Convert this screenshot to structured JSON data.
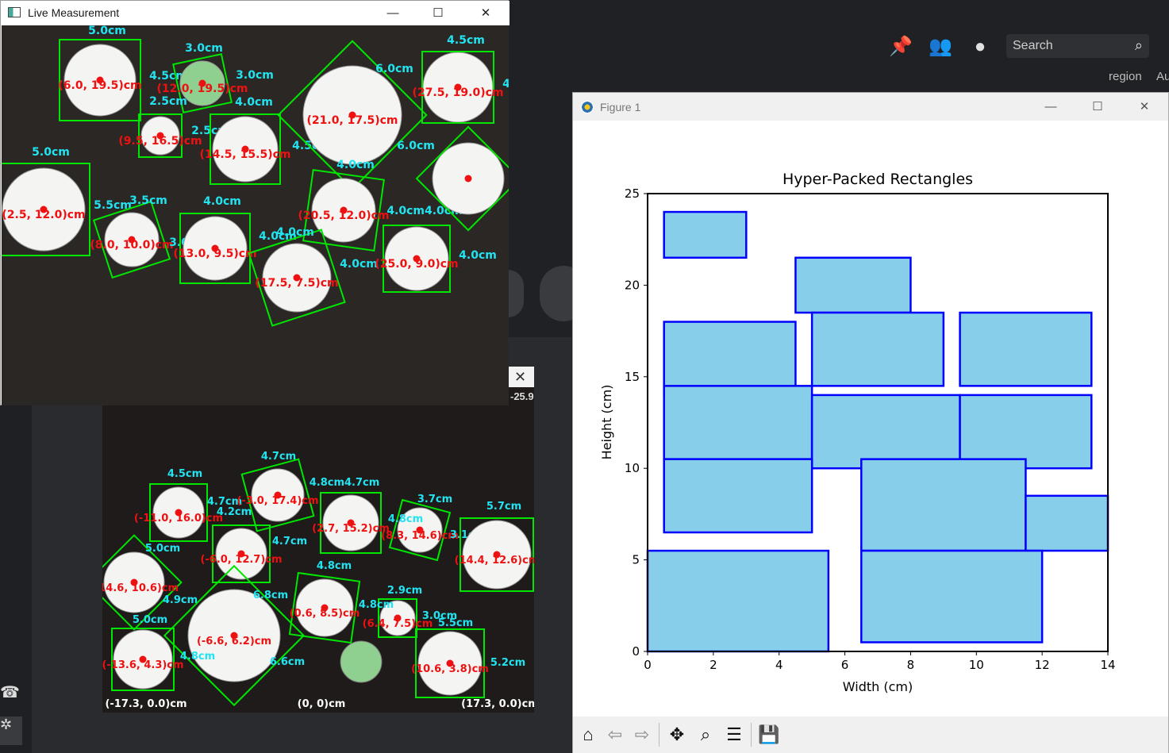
{
  "background_app": {
    "search_placeholder": "Search",
    "region_label": "region",
    "au_label": "Au"
  },
  "live_window": {
    "title": "Live Measurement",
    "controls": {
      "minimize": "—",
      "maximize": "☐",
      "close": "✕"
    },
    "measurements": [
      {
        "coord": "(6.0, 19.5)cm",
        "size_labels": [
          "5.0cm",
          "4.5cm"
        ]
      },
      {
        "coord": "(12.0, 19.5)cm",
        "size_labels": [
          "3.0cm",
          "3.0cm",
          "2.5cm"
        ]
      },
      {
        "coord": "(9.5, 16.5)cm",
        "size_labels": [
          "2.5cm"
        ]
      },
      {
        "coord": "(14.5, 15.5)cm",
        "size_labels": [
          "4.0cm",
          "4.5cm"
        ]
      },
      {
        "coord": "(21.0, 17.5)cm",
        "size_labels": [
          "6.0cm",
          "6.0cm"
        ]
      },
      {
        "coord": "(27.5, 19.0)cm",
        "size_labels": [
          "4.5cm",
          "4"
        ]
      },
      {
        "coord": "(2.5, 12.0)cm",
        "size_labels": [
          "5.0cm",
          "5.5cm"
        ]
      },
      {
        "coord": "(8.0, 10.0)cm",
        "size_labels": [
          "3.5cm",
          "3.0cm"
        ]
      },
      {
        "coord": "(13.0, 9.5)cm",
        "size_labels": [
          "4.0cm",
          "4.0cm"
        ]
      },
      {
        "coord": "(20.5, 12.0)cm",
        "size_labels": [
          "4.0cm",
          "4.0cm4.0cm"
        ]
      },
      {
        "coord": "(17.5, 7.5)cm",
        "size_labels": [
          "4.0cm",
          "4.0cm"
        ]
      },
      {
        "coord": "(25.0, 9.0)cm",
        "size_labels": [
          "4.0cm"
        ]
      }
    ]
  },
  "cam2_window": {
    "close": "✕",
    "top_right_label": "-25.9",
    "measurements": [
      {
        "coord": "(-11.0, 16.0)cm",
        "size_labels": [
          "4.5cm",
          "4.7cm"
        ]
      },
      {
        "coord": "(-3.0, 17.4)cm",
        "size_labels": [
          "4.7cm"
        ]
      },
      {
        "coord": "(2.7, 15.2)cm",
        "size_labels": [
          "4.8cm4.7cm"
        ]
      },
      {
        "coord": "(8.3, 14.6)cm",
        "size_labels": [
          "3.7cm",
          "4.8cm",
          "3.1cm"
        ]
      },
      {
        "coord": "(14.4, 12.6)cm",
        "size_labels": [
          "5.7cm"
        ]
      },
      {
        "coord": "(-6.0, 12.7)cm",
        "size_labels": [
          "4.2cm",
          "4.7cm"
        ]
      },
      {
        "coord": "(-14.6, 10.6)cm",
        "size_labels": [
          "5.0cm",
          "4.9cm"
        ]
      },
      {
        "coord": "(0.6, 8.5)cm",
        "size_labels": [
          "4.8cm"
        ]
      },
      {
        "coord": "(-6.6, 6.2)cm",
        "size_labels": [
          "6.8cm",
          "6.6cm"
        ]
      },
      {
        "coord": "(6.4, 7.5)cm",
        "size_labels": [
          "2.9cm",
          "4.8cm"
        ]
      },
      {
        "coord": "(-13.6, 4.3)cm",
        "size_labels": [
          "5.0cm",
          "4.8cm"
        ]
      },
      {
        "coord": "(10.6, 3.8)cm",
        "size_labels": [
          "3.0cm",
          "5.5cm",
          "5.2cm"
        ]
      }
    ],
    "axis_labels": [
      "(-17.3, 0.0)cm",
      "(0, 0)cm",
      "(17.3, 0.0)cm"
    ]
  },
  "figure_window": {
    "title": "Figure 1",
    "controls": {
      "minimize": "—",
      "maximize": "☐",
      "close": "✕"
    },
    "toolbar": [
      "home-icon",
      "back-icon",
      "forward-icon",
      "pan-icon",
      "zoom-icon",
      "configure-icon",
      "save-icon"
    ]
  },
  "chart_data": {
    "type": "bar",
    "title": "Hyper-Packed Rectangles",
    "xlabel": "Width (cm)",
    "ylabel": "Height (cm)",
    "xlim": [
      0,
      14
    ],
    "ylim": [
      0,
      25
    ],
    "xticks": [
      0,
      2,
      4,
      6,
      8,
      10,
      12,
      14
    ],
    "yticks": [
      0,
      5,
      10,
      15,
      20,
      25
    ],
    "fill_color": "#87ceeb",
    "edge_color": "#0000ff",
    "rectangles": [
      {
        "x": 0.5,
        "y": 21.5,
        "w": 2.5,
        "h": 2.5
      },
      {
        "x": 4.5,
        "y": 18.5,
        "w": 3.5,
        "h": 3.0
      },
      {
        "x": 0.5,
        "y": 14.0,
        "w": 4.0,
        "h": 4.0
      },
      {
        "x": 5.0,
        "y": 14.5,
        "w": 4.0,
        "h": 4.0
      },
      {
        "x": 9.5,
        "y": 14.5,
        "w": 4.0,
        "h": 4.0
      },
      {
        "x": 0.5,
        "y": 10.5,
        "w": 4.5,
        "h": 4.0
      },
      {
        "x": 5.0,
        "y": 10.0,
        "w": 4.5,
        "h": 4.0
      },
      {
        "x": 9.5,
        "y": 10.0,
        "w": 4.0,
        "h": 4.0
      },
      {
        "x": 0.5,
        "y": 6.5,
        "w": 4.5,
        "h": 4.0
      },
      {
        "x": 6.5,
        "y": 5.5,
        "w": 5.0,
        "h": 5.0
      },
      {
        "x": 11.5,
        "y": 5.5,
        "w": 2.5,
        "h": 3.0
      },
      {
        "x": 0.0,
        "y": 0.0,
        "w": 5.5,
        "h": 5.5
      },
      {
        "x": 6.5,
        "y": 0.5,
        "w": 5.5,
        "h": 5.0
      }
    ]
  }
}
